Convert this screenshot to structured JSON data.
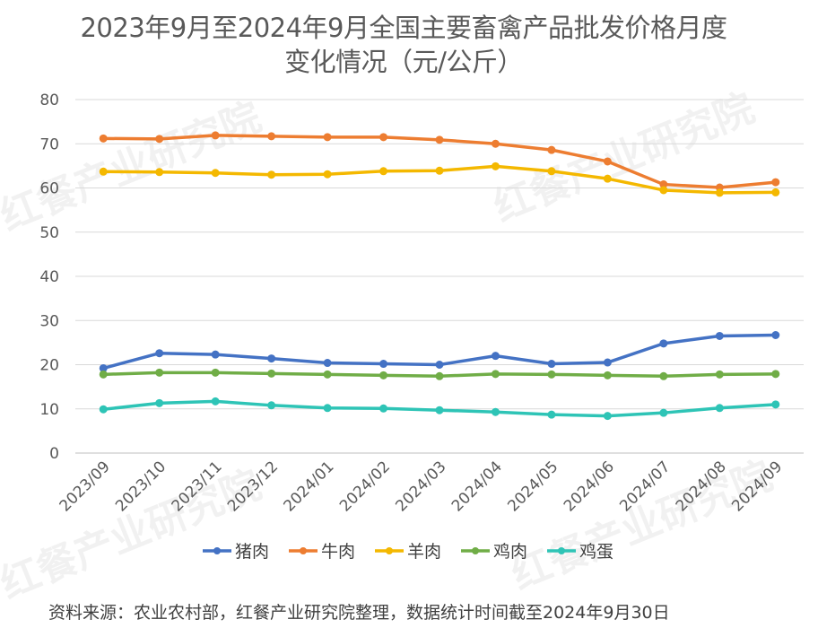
{
  "title_line1": "2023年9月至2024年9月全国主要畜禽产品批发价格月度",
  "title_line2": "变化情况（元/公斤）",
  "source": "资料来源：农业农村部，红餐产业研究院整理，数据统计时间截至2024年9月30日",
  "watermark": "红餐产业研究院",
  "chart_data": {
    "type": "line",
    "categories": [
      "2023/09",
      "2023/10",
      "2023/11",
      "2023/12",
      "2024/01",
      "2024/02",
      "2024/03",
      "2024/04",
      "2024/05",
      "2024/06",
      "2024/07",
      "2024/08",
      "2024/09"
    ],
    "ylim": [
      0,
      80
    ],
    "yticks": [
      0,
      10,
      20,
      30,
      40,
      50,
      60,
      70,
      80
    ],
    "grid": true,
    "legend_position": "bottom",
    "series": [
      {
        "name": "猪肉",
        "color": "#4472C4",
        "values": [
          19.2,
          22.6,
          22.3,
          21.4,
          20.4,
          20.2,
          20.0,
          22.0,
          20.2,
          20.5,
          24.8,
          26.5,
          26.7
        ]
      },
      {
        "name": "牛肉",
        "color": "#ED7D31",
        "values": [
          71.2,
          71.1,
          71.9,
          71.7,
          71.5,
          71.5,
          70.9,
          70.0,
          68.6,
          66.0,
          60.8,
          60.1,
          61.3
        ]
      },
      {
        "name": "羊肉",
        "color": "#F4B800",
        "values": [
          63.7,
          63.6,
          63.4,
          63.0,
          63.1,
          63.8,
          63.9,
          64.9,
          63.8,
          62.1,
          59.5,
          58.9,
          59.0
        ]
      },
      {
        "name": "鸡肉",
        "color": "#70AD47",
        "values": [
          17.8,
          18.2,
          18.2,
          18.0,
          17.8,
          17.6,
          17.4,
          17.9,
          17.8,
          17.6,
          17.4,
          17.8,
          17.9
        ]
      },
      {
        "name": "鸡蛋",
        "color": "#2EC4B6",
        "values": [
          9.9,
          11.3,
          11.7,
          10.8,
          10.2,
          10.1,
          9.7,
          9.3,
          8.7,
          8.4,
          9.1,
          10.2,
          11.0
        ]
      }
    ]
  }
}
